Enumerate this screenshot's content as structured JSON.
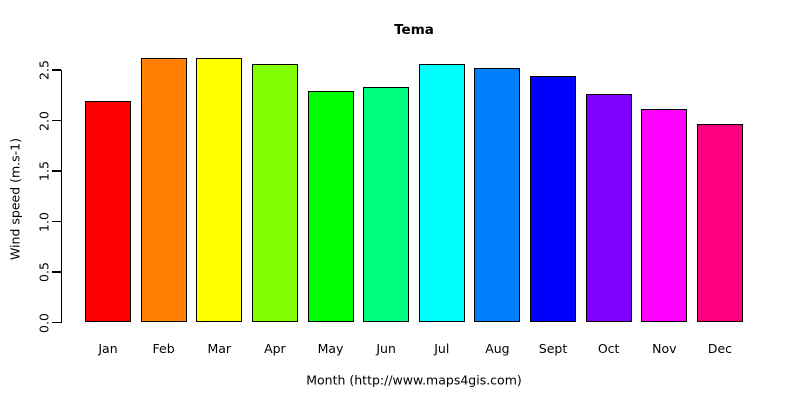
{
  "title": "Tema",
  "axes": {
    "y_label": "Wind speed (m.s-1)",
    "x_label": "Month (http://www.maps4gis.com)",
    "y_ticks": [
      "0.0",
      "0.5",
      "1.0",
      "1.5",
      "2.0",
      "2.5"
    ]
  },
  "chart_data": {
    "type": "bar",
    "title": "Tema",
    "xlabel": "Month (http://www.maps4gis.com)",
    "ylabel": "Wind speed (m.s-1)",
    "categories": [
      "Jan",
      "Feb",
      "Mar",
      "Apr",
      "May",
      "Jun",
      "Jul",
      "Aug",
      "Sept",
      "Oct",
      "Nov",
      "Dec"
    ],
    "values": [
      2.19,
      2.62,
      2.62,
      2.56,
      2.29,
      2.33,
      2.56,
      2.52,
      2.44,
      2.26,
      2.11,
      1.97
    ],
    "bar_colors": [
      "#FF0000",
      "#FF8000",
      "#FFFF00",
      "#80FF00",
      "#00FF00",
      "#00FF80",
      "#00FFFF",
      "#0080FF",
      "#0000FF",
      "#8000FF",
      "#FF00FF",
      "#FF0080"
    ],
    "bar_border_color": "#000000",
    "background_color": "#FFFFFF",
    "text_color": "#000000",
    "ylim": [
      0,
      2.5
    ],
    "yticks": [
      0.0,
      0.5,
      1.0,
      1.5,
      2.0,
      2.5
    ],
    "grid": false,
    "legend": false
  }
}
